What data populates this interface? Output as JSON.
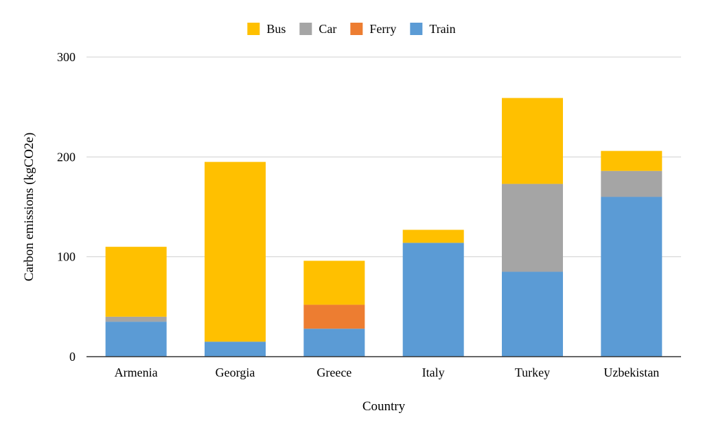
{
  "chart_data": {
    "type": "bar",
    "stacked": true,
    "xlabel": "Country",
    "ylabel": "Carbon emissions (kgCO2e)",
    "ylim": [
      0,
      300
    ],
    "yticks": [
      0,
      100,
      200,
      300
    ],
    "grid": true,
    "legend_position": "top-center",
    "categories": [
      "Armenia",
      "Georgia",
      "Greece",
      "Italy",
      "Turkey",
      "Uzbekistan"
    ],
    "series": [
      {
        "name": "Train",
        "color": "#5b9bd5",
        "values": [
          35,
          15,
          28,
          114,
          85,
          160
        ]
      },
      {
        "name": "Car",
        "color": "#a5a5a5",
        "values": [
          5,
          0,
          0,
          0,
          88,
          26
        ]
      },
      {
        "name": "Ferry",
        "color": "#ed7d31",
        "values": [
          0,
          0,
          24,
          0,
          0,
          0
        ]
      },
      {
        "name": "Bus",
        "color": "#ffc000",
        "values": [
          70,
          180,
          44,
          13,
          86,
          20
        ]
      }
    ],
    "legend_order": [
      "Bus",
      "Car",
      "Ferry",
      "Train"
    ]
  }
}
